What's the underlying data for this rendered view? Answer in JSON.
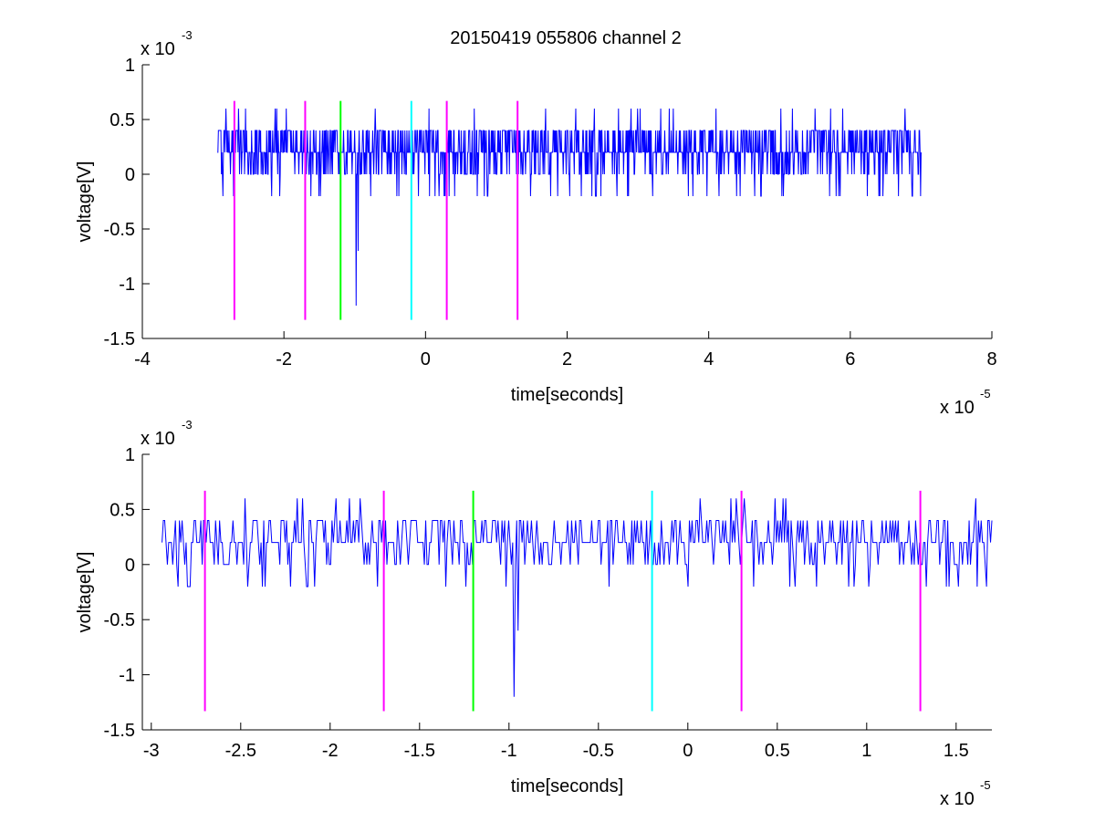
{
  "figure": {
    "title": "20150419 055806 channel 2"
  },
  "colors": {
    "signal": "#0000ff",
    "magenta": "#ff00ff",
    "green": "#00ff00",
    "cyan": "#00ffff",
    "axes": "#000000"
  },
  "chart_data": [
    {
      "type": "line",
      "title": "20150419 055806 channel 2",
      "xlabel": "time[seconds]",
      "ylabel": "voltage[V]",
      "x_multiplier_label": "x 10",
      "x_multiplier_exp": "-5",
      "y_multiplier_label": "x 10",
      "y_multiplier_exp": "-3",
      "xlim": [
        -4,
        8
      ],
      "ylim": [
        -1.5,
        1
      ],
      "x_unit_scale": "1e-5",
      "y_unit_scale": "1e-3",
      "xticks": [
        -4,
        -2,
        0,
        2,
        4,
        6,
        8
      ],
      "xtick_labels": [
        "-4",
        "-2",
        "0",
        "2",
        "4",
        "6",
        "8"
      ],
      "yticks": [
        -1.5,
        -1,
        -0.5,
        0,
        0.5,
        1
      ],
      "ytick_labels": [
        "-1.5",
        "-1",
        "-0.5",
        "0",
        "0.5",
        "1"
      ],
      "grid": false,
      "series": [
        {
          "kind": "noisy-signal",
          "color": "#0000ff",
          "x_range": [
            -2.94,
            7.0
          ],
          "baseline": 0.2,
          "levels": [
            -0.2,
            0,
            0.2,
            0.4,
            0.6
          ],
          "spikes": [
            {
              "x": -0.98,
              "y": -1.2
            },
            {
              "x": -0.95,
              "y": -0.7
            },
            {
              "x": -1.97,
              "y": 0.6
            },
            {
              "x": 0.05,
              "y": 0.6
            },
            {
              "x": 2.12,
              "y": 0.6
            },
            {
              "x": 2.9,
              "y": 0.6
            },
            {
              "x": 5.5,
              "y": 0.6
            }
          ]
        }
      ],
      "markers": [
        {
          "x": -2.7,
          "color": "#ff00ff",
          "y_range": [
            -1.33,
            0.67
          ]
        },
        {
          "x": -1.7,
          "color": "#ff00ff",
          "y_range": [
            -1.33,
            0.67
          ]
        },
        {
          "x": -1.2,
          "color": "#00ff00",
          "y_range": [
            -1.33,
            0.67
          ]
        },
        {
          "x": -0.2,
          "color": "#00ffff",
          "y_range": [
            -1.33,
            0.67
          ]
        },
        {
          "x": 0.3,
          "color": "#ff00ff",
          "y_range": [
            -1.33,
            0.67
          ]
        },
        {
          "x": 1.3,
          "color": "#ff00ff",
          "y_range": [
            -1.33,
            0.67
          ]
        }
      ]
    },
    {
      "type": "line",
      "title": "",
      "xlabel": "time[seconds]",
      "ylabel": "voltage[V]",
      "x_multiplier_label": "x 10",
      "x_multiplier_exp": "-5",
      "y_multiplier_label": "x 10",
      "y_multiplier_exp": "-3",
      "xlim": [
        -3.05,
        1.7
      ],
      "ylim": [
        -1.5,
        1
      ],
      "x_unit_scale": "1e-5",
      "y_unit_scale": "1e-3",
      "xticks": [
        -3,
        -2.5,
        -2,
        -1.5,
        -1,
        -0.5,
        0,
        0.5,
        1,
        1.5
      ],
      "xtick_labels": [
        "-3",
        "-2.5",
        "-2",
        "-1.5",
        "-1",
        "-0.5",
        "0",
        "0.5",
        "1",
        "1.5"
      ],
      "yticks": [
        -1.5,
        -1,
        -0.5,
        0,
        0.5,
        1
      ],
      "ytick_labels": [
        "-1.5",
        "-1",
        "-0.5",
        "0",
        "0.5",
        "1"
      ],
      "grid": false,
      "series": [
        {
          "kind": "noisy-signal",
          "color": "#0000ff",
          "x_range": [
            -2.94,
            1.7
          ],
          "baseline": 0.2,
          "levels": [
            -0.2,
            0,
            0.2,
            0.4,
            0.6
          ],
          "spikes": [
            {
              "x": -0.975,
              "y": -1.2
            },
            {
              "x": -0.95,
              "y": -0.6
            },
            {
              "x": -1.97,
              "y": 0.6
            },
            {
              "x": 0.07,
              "y": 0.6
            },
            {
              "x": 0.27,
              "y": 0.6
            },
            {
              "x": -2.22,
              "y": -0.2
            },
            {
              "x": 0.6,
              "y": -0.2
            },
            {
              "x": 0.9,
              "y": -0.2
            },
            {
              "x": 1.62,
              "y": -0.2
            }
          ]
        }
      ],
      "markers": [
        {
          "x": -2.7,
          "color": "#ff00ff",
          "y_range": [
            -1.33,
            0.67
          ]
        },
        {
          "x": -1.7,
          "color": "#ff00ff",
          "y_range": [
            -1.33,
            0.67
          ]
        },
        {
          "x": -1.2,
          "color": "#00ff00",
          "y_range": [
            -1.33,
            0.67
          ]
        },
        {
          "x": -0.2,
          "color": "#00ffff",
          "y_range": [
            -1.33,
            0.67
          ]
        },
        {
          "x": 0.3,
          "color": "#ff00ff",
          "y_range": [
            -1.33,
            0.67
          ]
        },
        {
          "x": 1.3,
          "color": "#ff00ff",
          "y_range": [
            -1.33,
            0.67
          ]
        }
      ]
    }
  ]
}
